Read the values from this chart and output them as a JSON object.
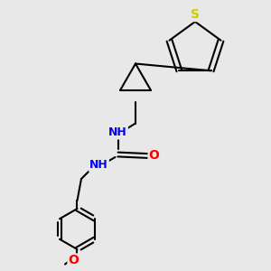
{
  "background_color": "#e8e8e8",
  "bond_color": "#000000",
  "atom_colors": {
    "N": "#0000ff",
    "O": "#ff0000",
    "S": "#cccc00",
    "H_N": "#008080",
    "C": "#000000"
  },
  "title": "",
  "figsize": [
    3.0,
    3.0
  ],
  "dpi": 100
}
